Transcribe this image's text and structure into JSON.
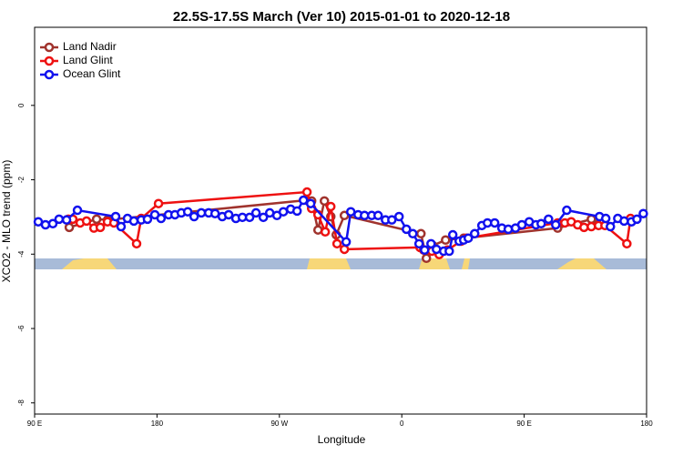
{
  "chart_data": {
    "type": "line",
    "title": "22.5S-17.5S March (Ver 10)   2015-01-01 to 2020-12-18",
    "x_label": "Longitude",
    "y_label": "XCO2 - MLO trend (ppm)",
    "xlim": [
      90,
      540
    ],
    "ylim": [
      -8.3,
      2.1
    ],
    "xticks": [
      {
        "value": 90,
        "label": "90 E"
      },
      {
        "value": 180,
        "label": "180"
      },
      {
        "value": 270,
        "label": "90 W"
      },
      {
        "value": 360,
        "label": "0"
      },
      {
        "value": 450,
        "label": "90 E"
      },
      {
        "value": 540,
        "label": "180"
      }
    ],
    "yticks": [
      -8,
      -6,
      -4,
      -2,
      0
    ],
    "legend": "upper left",
    "series": [
      {
        "name": "Land Nadir",
        "color": "#a0332d",
        "x": [
          115.5,
          135.6,
          143.6,
          289.7,
          293.7,
          298.4,
          303.1,
          307.8,
          311.8,
          317.8,
          374.1,
          378.1,
          382.8,
          392.2,
          405.6,
          474.6,
          499.4,
          504.1
        ],
        "values": [
          -3.28,
          -3.06,
          -3.08,
          -2.55,
          -2.57,
          -3.35,
          -2.57,
          -2.99,
          -3.48,
          -2.96,
          -3.45,
          -4.11,
          -3.77,
          -3.62,
          -3.57,
          -3.3,
          -3.06,
          -3.21
        ]
      },
      {
        "name": "Land Glint",
        "color": "#ee1111",
        "x": [
          114.8,
          118.1,
          123.5,
          128.2,
          133.6,
          138.3,
          143.6,
          148.3,
          165,
          168.4,
          181.1,
          290.3,
          293.7,
          298.4,
          303.7,
          307.8,
          312.4,
          317.8,
          373.4,
          376.1,
          382.1,
          387.5,
          393.5,
          403.6,
          407.6,
          474.6,
          479.9,
          484.6,
          489.3,
          494,
          499.4,
          504.7,
          509.4,
          525.5,
          528.2
        ],
        "values": [
          -3.06,
          -3.06,
          -3.16,
          -3.11,
          -3.3,
          -3.28,
          -3.13,
          -3.16,
          -3.72,
          -3.04,
          -2.64,
          -2.33,
          -2.77,
          -2.94,
          -3.4,
          -2.72,
          -3.72,
          -3.87,
          -3.82,
          -3.89,
          -3.92,
          -4.01,
          -3.89,
          -3.65,
          -3.57,
          -3.16,
          -3.16,
          -3.13,
          -3.21,
          -3.28,
          -3.26,
          -3.23,
          -3.23,
          -3.72,
          -3.04
        ]
      },
      {
        "name": "Ocean Glint",
        "color": "#1111ee",
        "x": [
          92.7,
          98,
          103.4,
          108,
          113.5,
          121.5,
          149.6,
          153.6,
          158.3,
          163,
          168.4,
          173,
          178.4,
          183,
          188.5,
          193.2,
          197.9,
          202.6,
          207.3,
          212.6,
          218,
          222.7,
          228,
          232.7,
          238,
          242.8,
          248.1,
          252.8,
          258.2,
          262.9,
          268.2,
          272.9,
          278.3,
          283,
          287.7,
          293,
          319.1,
          322.5,
          327.9,
          332.6,
          337.9,
          342.6,
          348,
          352.7,
          358,
          363.4,
          368.1,
          372.7,
          376.8,
          381.5,
          385.5,
          390.8,
          394.9,
          397.5,
          402.2,
          405.5,
          408.9,
          413.6,
          418.9,
          423,
          428.3,
          433.6,
          438.3,
          443.6,
          448.3,
          453.7,
          458.6,
          462.5,
          467.9,
          473.2,
          481.3,
          505.4,
          510,
          513.4,
          518.8,
          523.5,
          528.9,
          532.9,
          537.6
        ],
        "values": [
          -3.13,
          -3.21,
          -3.18,
          -3.06,
          -3.08,
          -2.82,
          -2.99,
          -3.26,
          -3.04,
          -3.11,
          -3.08,
          -3.06,
          -2.94,
          -3.04,
          -2.94,
          -2.94,
          -2.89,
          -2.86,
          -2.99,
          -2.89,
          -2.89,
          -2.91,
          -2.99,
          -2.94,
          -3.04,
          -3.01,
          -3.01,
          -2.89,
          -3.01,
          -2.89,
          -2.96,
          -2.86,
          -2.79,
          -2.84,
          -2.55,
          -2.64,
          -3.67,
          -2.86,
          -2.94,
          -2.96,
          -2.96,
          -2.96,
          -3.08,
          -3.08,
          -2.99,
          -3.33,
          -3.45,
          -3.72,
          -3.89,
          -3.72,
          -3.87,
          -3.92,
          -3.92,
          -3.48,
          -3.65,
          -3.62,
          -3.57,
          -3.45,
          -3.23,
          -3.16,
          -3.16,
          -3.3,
          -3.33,
          -3.3,
          -3.21,
          -3.13,
          -3.21,
          -3.18,
          -3.06,
          -3.21,
          -2.82,
          -2.99,
          -3.04,
          -3.26,
          -3.04,
          -3.11,
          -3.13,
          -3.06,
          -2.91
        ]
      }
    ]
  }
}
